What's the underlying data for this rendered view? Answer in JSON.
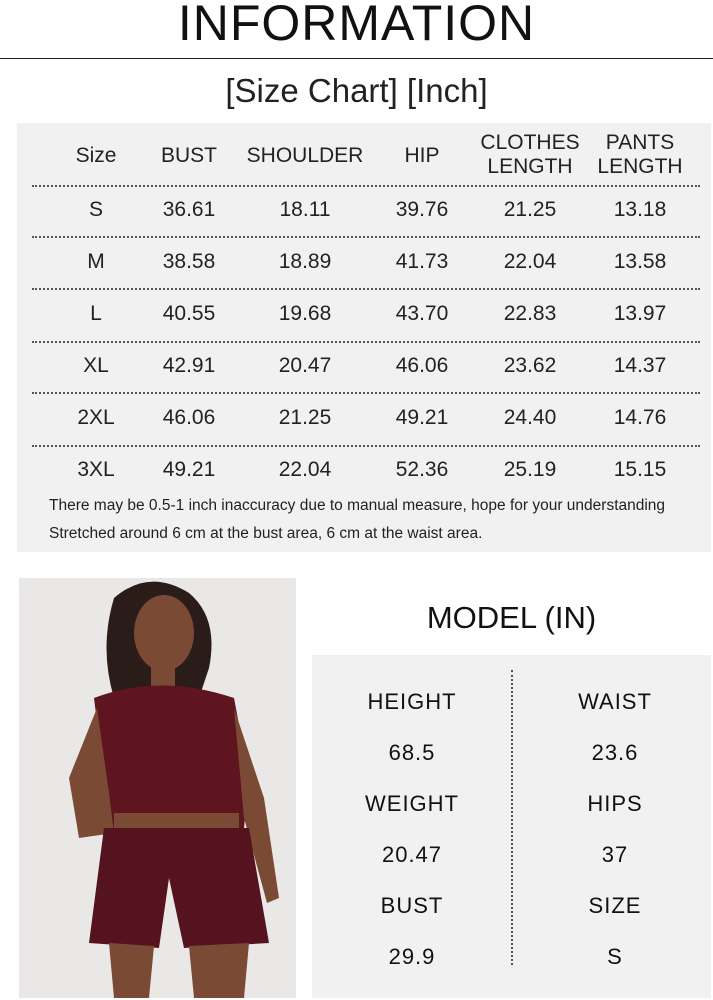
{
  "title": "INFORMATION",
  "subtitle": "[Size Chart] [Inch]",
  "size_chart": {
    "headers": [
      "Size",
      "BUST",
      "SHOULDER",
      "HIP",
      "CLOTHES\nLENGTH",
      "PANTS\nLENGTH"
    ],
    "rows": [
      [
        "S",
        "36.61",
        "18.11",
        "39.76",
        "21.25",
        "13.18"
      ],
      [
        "M",
        "38.58",
        "18.89",
        "41.73",
        "22.04",
        "13.58"
      ],
      [
        "L",
        "40.55",
        "19.68",
        "43.70",
        "22.83",
        "13.97"
      ],
      [
        "XL",
        "42.91",
        "20.47",
        "46.06",
        "23.62",
        "14.37"
      ],
      [
        "2XL",
        "46.06",
        "21.25",
        "49.21",
        "24.40",
        "14.76"
      ],
      [
        "3XL",
        "49.21",
        "22.04",
        "52.36",
        "25.19",
        "15.15"
      ]
    ],
    "notes": [
      "There may be 0.5-1 inch inaccuracy due to manual measure, hope for your understanding",
      "Stretched around 6 cm at the bust area, 6 cm at the waist area."
    ]
  },
  "model": {
    "title": "MODEL (IN)",
    "left": [
      {
        "label": "HEIGHT",
        "value": "68.5"
      },
      {
        "label": "WEIGHT",
        "value": "20.47"
      },
      {
        "label": "BUST",
        "value": "29.9"
      }
    ],
    "right": [
      {
        "label": "WAIST",
        "value": "23.6"
      },
      {
        "label": "HIPS",
        "value": "37"
      },
      {
        "label": "SIZE",
        "value": "S"
      }
    ]
  },
  "colors": {
    "panel": "#f1f1f1",
    "garment": "#5e1520"
  }
}
